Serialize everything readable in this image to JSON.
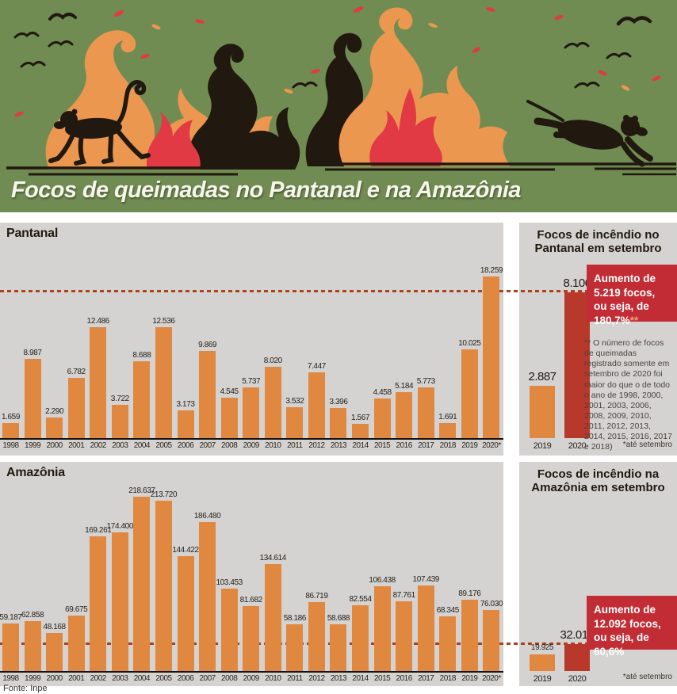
{
  "header": {
    "title": "Focos de queimadas no Pantanal e na Amazônia"
  },
  "colors": {
    "hero_green": "#708c52",
    "flame_orange": "#ec9750",
    "flame_red": "#e23a45",
    "silhouette": "#211810",
    "panel_gray": "#d4d3d1",
    "bar_orange": "#e0883f",
    "bar_red": "#b8382c",
    "callout_red": "#c22d35",
    "callout_mark": "#efa27a",
    "dash_red": "#a8421f",
    "axis": "#16120e"
  },
  "chart_data": [
    {
      "id": "pantanal-anual",
      "type": "bar",
      "title": "Pantanal",
      "categories": [
        "1998",
        "1999",
        "2000",
        "2001",
        "2002",
        "2003",
        "2004",
        "2005",
        "2006",
        "2007",
        "2008",
        "2009",
        "2010",
        "2011",
        "2012",
        "2013",
        "2014",
        "2015",
        "2016",
        "2017",
        "2018",
        "2019",
        "2020*"
      ],
      "values": [
        1659,
        8987,
        2290,
        6782,
        12486,
        3722,
        8688,
        12536,
        3173,
        9869,
        4545,
        5737,
        8020,
        3532,
        7447,
        3396,
        1567,
        4458,
        5184,
        5773,
        1691,
        10025,
        18259
      ],
      "labels": [
        "1.659",
        "8.987",
        "2.290",
        "6.782",
        "12.486",
        "3.722",
        "8.688",
        "12.536",
        "3.173",
        "9.869",
        "4.545",
        "5.737",
        "8.020",
        "3.532",
        "7.447",
        "3.396",
        "1.567",
        "4.458",
        "5.184",
        "5.773",
        "1.691",
        "10.025",
        "18.259"
      ],
      "xlabel": "",
      "ylabel": "",
      "ylim": [
        0,
        18259
      ],
      "grid": false,
      "legend": false,
      "dashed_reference_value": 8106
    },
    {
      "id": "amazonia-anual",
      "type": "bar",
      "title": "Amazônia",
      "categories": [
        "1998",
        "1999",
        "2000",
        "2001",
        "2002",
        "2003",
        "2004",
        "2005",
        "2006",
        "2007",
        "2008",
        "2009",
        "2010",
        "2011",
        "2012",
        "2013",
        "2014",
        "2015",
        "2016",
        "2017",
        "2018",
        "2019",
        "2020*"
      ],
      "values": [
        59187,
        62858,
        48168,
        69675,
        169261,
        174400,
        218637,
        213720,
        144422,
        186480,
        103453,
        81682,
        134614,
        58186,
        86719,
        58688,
        82554,
        106438,
        87761,
        107439,
        68345,
        89176,
        76030
      ],
      "labels": [
        "59.187",
        "62.858",
        "48.168",
        "69.675",
        "169.261",
        "174.400",
        "218.637",
        "213.720",
        "144.422",
        "186.480",
        "103.453",
        "81.682",
        "134.614",
        "58.186",
        "86.719",
        "58.688",
        "82.554",
        "106.438",
        "87.761",
        "107.439",
        "68.345",
        "89.176",
        "76.030"
      ],
      "xlabel": "",
      "ylabel": "",
      "ylim": [
        0,
        218637
      ],
      "grid": false,
      "legend": false,
      "dashed_reference_value": 32017
    },
    {
      "id": "pantanal-setembro",
      "type": "bar",
      "title": "Focos de incêndio no Pantanal em setembro",
      "categories": [
        "2019",
        "2020"
      ],
      "values": [
        2887,
        8106
      ],
      "labels": [
        "2.887",
        "8.106"
      ],
      "colors": [
        "#e0883f",
        "#b8382c"
      ],
      "ylim": [
        0,
        8106
      ]
    },
    {
      "id": "amazonia-setembro",
      "type": "bar",
      "title": "Focos de incêndio na Amazônia em setembro",
      "categories": [
        "2019",
        "2020"
      ],
      "values": [
        19925,
        32017
      ],
      "labels": [
        "19.925",
        "32.017"
      ],
      "colors": [
        "#e0883f",
        "#b8382c"
      ],
      "ylim": [
        0,
        32017
      ]
    }
  ],
  "pantanal_september": {
    "callout_text": "Aumento de 5.219 focos, ou seja, de 180,7%",
    "callout_mark": "**",
    "footnote": "** O número de focos de queimadas registrado somente em setembro de 2020 foi maior do que o de todo o ano de 1998, 2000, 2001, 2003, 2006, 2008, 2009, 2010, 2011, 2012, 2013, 2014, 2015, 2016, 2017 e 2018)",
    "note": "*até setembro"
  },
  "amazonia_september": {
    "callout_text": "Aumento de 12.092 focos, ou seja, de 60,6%",
    "callout_mark": "",
    "note": "*até setembro"
  },
  "footer": {
    "source": "Fonte: Inpe"
  }
}
